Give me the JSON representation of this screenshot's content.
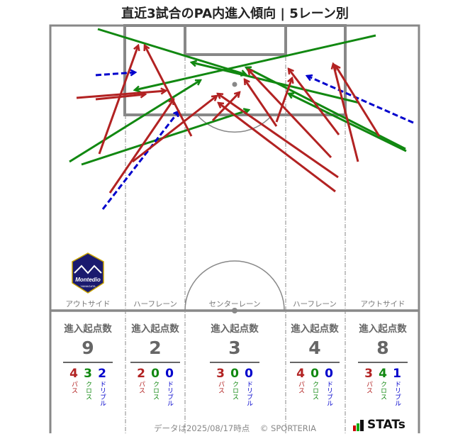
{
  "title": "直近3試合のPA内進入傾向 | 5レーン別",
  "colors": {
    "pass": "#b22222",
    "cross": "#118811",
    "dribble": "#0000cc",
    "pitch_line": "#888888"
  },
  "lanes": [
    {
      "label": "アウトサイド",
      "header": "進入起点数",
      "total": "9",
      "pass": "4",
      "cross": "3",
      "dribble": "2"
    },
    {
      "label": "ハーフレーン",
      "header": "進入起点数",
      "total": "2",
      "pass": "2",
      "cross": "0",
      "dribble": "0"
    },
    {
      "label": "センターレーン",
      "header": "進入起点数",
      "total": "3",
      "pass": "3",
      "cross": "0",
      "dribble": "0"
    },
    {
      "label": "ハーフレーン",
      "header": "進入起点数",
      "total": "4",
      "pass": "4",
      "cross": "0",
      "dribble": "0"
    },
    {
      "label": "アウトサイド",
      "header": "進入起点数",
      "total": "8",
      "pass": "3",
      "cross": "4",
      "dribble": "1"
    }
  ],
  "type_labels": {
    "pass": "パス",
    "cross": "クロス",
    "dribble": "ドリブル"
  },
  "footer": {
    "date": "データは2025/08/17時点",
    "copyright": "© SPORTERIA",
    "brand": "STATs"
  },
  "logo": {
    "text": "Montedio",
    "sub": "YAMAGATA"
  }
}
